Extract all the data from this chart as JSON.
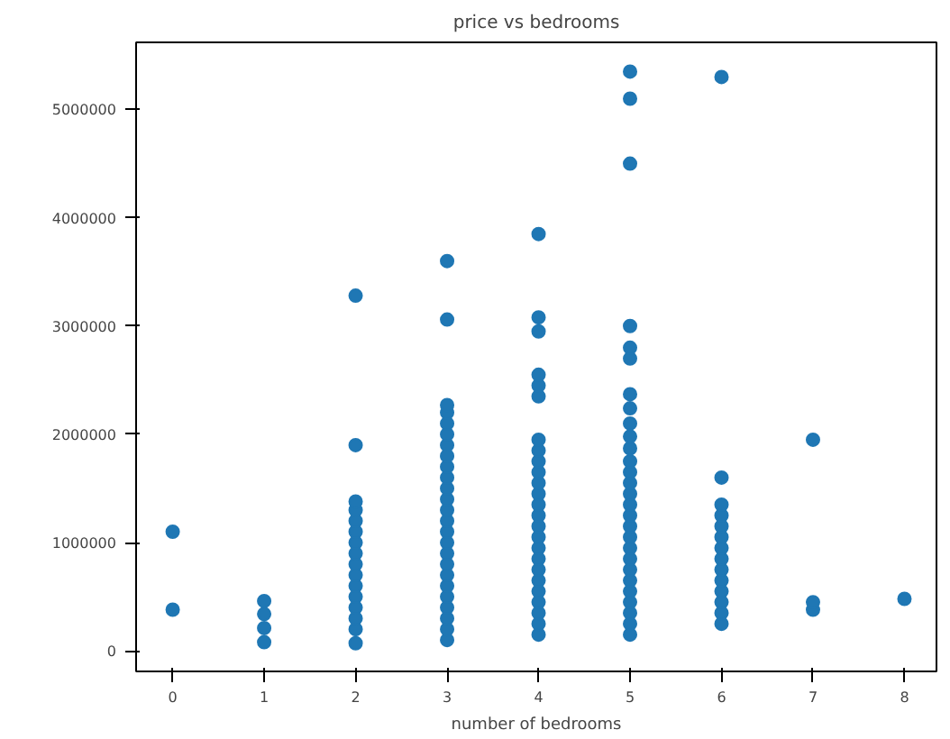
{
  "chart_data": {
    "type": "scatter",
    "title": "price vs bedrooms",
    "xlabel": "number of bedrooms",
    "xlim": [
      -0.4,
      8.35
    ],
    "xticks": [
      0,
      1,
      2,
      3,
      4,
      5,
      6,
      7,
      8
    ],
    "ylim": [
      -190000,
      5620000
    ],
    "yticks": [
      0,
      1000000,
      2000000,
      3000000,
      4000000,
      5000000
    ],
    "grid": false,
    "marker": "circle",
    "series": [
      {
        "color": "#1f77b4",
        "x": [
          0,
          0
        ],
        "values": [
          380000,
          1100000
        ]
      },
      {
        "color": "#1f77b4",
        "x": [
          1,
          1,
          1,
          1
        ],
        "values": [
          80000,
          210000,
          340000,
          460000
        ]
      },
      {
        "color": "#1f77b4",
        "x": [
          2,
          2,
          2,
          2,
          2,
          2,
          2,
          2,
          2,
          2,
          2,
          2,
          2,
          2,
          2,
          2
        ],
        "values": [
          70000,
          200000,
          300000,
          400000,
          500000,
          600000,
          700000,
          800000,
          900000,
          1000000,
          1100000,
          1200000,
          1300000,
          1380000,
          1900000,
          3280000
        ]
      },
      {
        "color": "#1f77b4",
        "x": [
          3,
          3,
          3,
          3,
          3,
          3,
          3,
          3,
          3,
          3,
          3,
          3,
          3,
          3,
          3,
          3,
          3,
          3,
          3,
          3,
          3,
          3,
          3,
          3,
          3
        ],
        "values": [
          100000,
          200000,
          300000,
          400000,
          500000,
          600000,
          700000,
          800000,
          900000,
          1000000,
          1100000,
          1200000,
          1300000,
          1400000,
          1500000,
          1600000,
          1700000,
          1800000,
          1900000,
          2000000,
          2100000,
          2200000,
          2270000,
          3060000,
          3600000
        ]
      },
      {
        "color": "#1f77b4",
        "x": [
          4,
          4,
          4,
          4,
          4,
          4,
          4,
          4,
          4,
          4,
          4,
          4,
          4,
          4,
          4,
          4,
          4,
          4,
          4,
          4,
          4,
          4,
          4,
          4,
          4
        ],
        "values": [
          150000,
          250000,
          350000,
          450000,
          550000,
          650000,
          750000,
          850000,
          950000,
          1050000,
          1150000,
          1250000,
          1350000,
          1450000,
          1550000,
          1650000,
          1750000,
          1850000,
          1950000,
          2350000,
          2450000,
          2550000,
          2950000,
          3080000,
          3850000
        ]
      },
      {
        "color": "#1f77b4",
        "x": [
          5,
          5,
          5,
          5,
          5,
          5,
          5,
          5,
          5,
          5,
          5,
          5,
          5,
          5,
          5,
          5,
          5,
          5,
          5,
          5,
          5,
          5,
          5,
          5,
          5,
          5,
          5,
          5
        ],
        "values": [
          150000,
          250000,
          350000,
          450000,
          550000,
          650000,
          750000,
          850000,
          950000,
          1050000,
          1150000,
          1250000,
          1350000,
          1450000,
          1550000,
          1650000,
          1750000,
          1870000,
          1980000,
          2100000,
          2240000,
          2370000,
          2700000,
          2800000,
          3000000,
          4500000,
          5100000,
          5350000
        ]
      },
      {
        "color": "#1f77b4",
        "x": [
          6,
          6,
          6,
          6,
          6,
          6,
          6,
          6,
          6,
          6,
          6,
          6,
          6,
          6
        ],
        "values": [
          250000,
          350000,
          450000,
          550000,
          650000,
          750000,
          850000,
          950000,
          1050000,
          1150000,
          1250000,
          1350000,
          1600000,
          5300000
        ]
      },
      {
        "color": "#1f77b4",
        "x": [
          7,
          7,
          7
        ],
        "values": [
          380000,
          450000,
          1950000
        ]
      },
      {
        "color": "#1f77b4",
        "x": [
          8
        ],
        "values": [
          480000
        ]
      }
    ]
  }
}
